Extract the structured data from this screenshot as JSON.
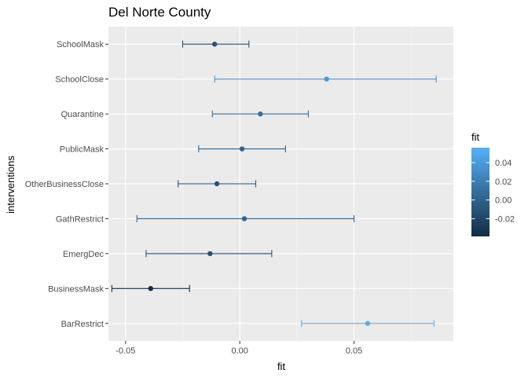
{
  "chart_data": {
    "type": "errorbar",
    "title": "Del Norte County",
    "xlabel": "fit",
    "ylabel": "interventions",
    "xlim": [
      -0.0575,
      0.0935
    ],
    "x_ticks": [
      -0.05,
      0.0,
      0.05
    ],
    "x_tick_labels": [
      "-0.05",
      "0.00",
      "0.05"
    ],
    "grid": true,
    "legend": {
      "title": "fit",
      "placement": "right",
      "type": "colorbar",
      "range": [
        -0.039,
        0.056
      ],
      "ticks": [
        -0.02,
        0.0,
        0.02,
        0.04
      ],
      "tick_labels": [
        "-0.02",
        "0.00",
        "0.02",
        "0.04"
      ],
      "low_color": "#132B43",
      "high_color": "#56B1F7"
    },
    "categories": [
      "SchoolMask",
      "SchoolClose",
      "Quarantine",
      "PublicMask",
      "OtherBusinessClose",
      "GathRestrict",
      "EmergDec",
      "BusinessMask",
      "BarRestrict"
    ],
    "points": [
      {
        "label": "SchoolMask",
        "fit": -0.011,
        "lower": -0.025,
        "upper": 0.004
      },
      {
        "label": "SchoolClose",
        "fit": 0.038,
        "lower": -0.011,
        "upper": 0.086
      },
      {
        "label": "Quarantine",
        "fit": 0.009,
        "lower": -0.012,
        "upper": 0.03
      },
      {
        "label": "PublicMask",
        "fit": 0.001,
        "lower": -0.018,
        "upper": 0.02
      },
      {
        "label": "OtherBusinessClose",
        "fit": -0.01,
        "lower": -0.027,
        "upper": 0.007
      },
      {
        "label": "GathRestrict",
        "fit": 0.002,
        "lower": -0.045,
        "upper": 0.05
      },
      {
        "label": "EmergDec",
        "fit": -0.013,
        "lower": -0.041,
        "upper": 0.014
      },
      {
        "label": "BusinessMask",
        "fit": -0.039,
        "lower": -0.056,
        "upper": -0.022
      },
      {
        "label": "BarRestrict",
        "fit": 0.056,
        "lower": 0.027,
        "upper": 0.085
      }
    ]
  }
}
